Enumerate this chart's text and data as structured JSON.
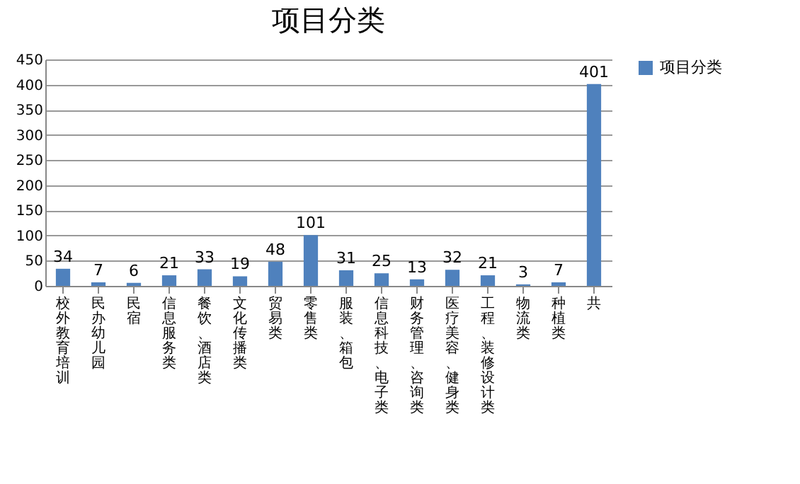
{
  "chart_data": {
    "type": "bar",
    "title": "项目分类",
    "categories": [
      "校外教育培训",
      "民办幼儿园",
      "民宿",
      "信息服务类",
      "餐饮、酒店类",
      "文化传播类",
      "贸易类",
      "零售类",
      "服装、箱包",
      "信息科技、电子类",
      "财务管理、咨询类",
      "医疗美容、健身类",
      "工程、装修设计类",
      "物流类",
      "种植类",
      "共"
    ],
    "series": [
      {
        "name": "项目分类",
        "color": "#4f81bd",
        "values": [
          34,
          7,
          6,
          21,
          33,
          19,
          48,
          101,
          31,
          25,
          13,
          32,
          21,
          3,
          7,
          401
        ]
      }
    ],
    "ylim": [
      0,
      450
    ],
    "yticks": [
      0,
      50,
      100,
      150,
      200,
      250,
      300,
      350,
      400,
      450
    ],
    "grid": "y",
    "legend": "right",
    "data_labels": true
  }
}
